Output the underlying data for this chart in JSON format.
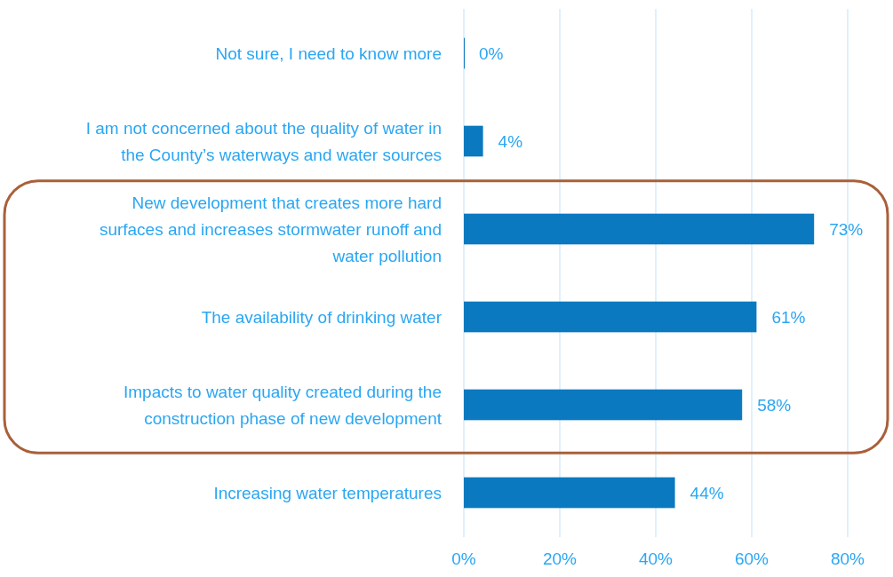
{
  "chart_data": {
    "type": "bar",
    "orientation": "horizontal",
    "categories": [
      "Not sure, I need to know more",
      "I am not concerned about the quality of water in the County’s waterways and water sources",
      "New development that creates more hard surfaces and increases stormwater runoff and water pollution",
      "The availability of drinking water",
      "Impacts to water quality created during the construction phase of new development",
      "Increasing water temperatures"
    ],
    "values": [
      0,
      4,
      73,
      61,
      58,
      44
    ],
    "value_labels": [
      "0%",
      "4%",
      "73%",
      "61%",
      "58%",
      "44%"
    ],
    "color": "#0a79bf",
    "xlim": [
      0,
      80
    ],
    "xticks": [
      {
        "value": 0,
        "label": "0%"
      },
      {
        "value": 20,
        "label": "20%"
      },
      {
        "value": 40,
        "label": "40%"
      },
      {
        "value": 60,
        "label": "60%"
      },
      {
        "value": 80,
        "label": "80%"
      }
    ],
    "grid": "x"
  }
}
